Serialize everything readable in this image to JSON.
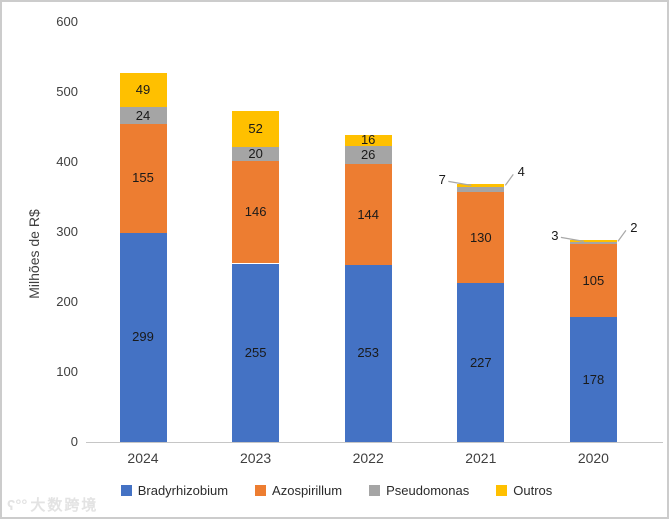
{
  "watermark": {
    "logo_glyph": "ʕ°°",
    "text": "大数跨境"
  },
  "chart_data": {
    "type": "bar",
    "stacked": true,
    "title": "",
    "xlabel": "",
    "ylabel": "Milhões de R$",
    "categories": [
      "2024",
      "2023",
      "2022",
      "2021",
      "2020"
    ],
    "series": [
      {
        "name": "Bradyrhizobium",
        "color": "#4472C4",
        "values": [
          299,
          255,
          253,
          227,
          178
        ]
      },
      {
        "name": "Azospirillum",
        "color": "#ED7D31",
        "values": [
          155,
          146,
          144,
          130,
          105
        ]
      },
      {
        "name": "Pseudomonas",
        "color": "#A5A5A5",
        "values": [
          24,
          20,
          26,
          7,
          3
        ]
      },
      {
        "name": "Outros",
        "color": "#FFC000",
        "values": [
          49,
          52,
          16,
          4,
          2
        ]
      }
    ],
    "ylim": [
      0,
      600
    ],
    "yticks": [
      0,
      100,
      200,
      300,
      400,
      500,
      600
    ],
    "gridlines": false,
    "legend_position": "bottom",
    "bar_value_labels": true,
    "callouts": [
      {
        "category": "2021",
        "series": "Pseudomonas",
        "value": 7,
        "side": "left"
      },
      {
        "category": "2021",
        "series": "Outros",
        "value": 4,
        "side": "right"
      },
      {
        "category": "2020",
        "series": "Pseudomonas",
        "value": 3,
        "side": "left"
      },
      {
        "category": "2020",
        "series": "Outros",
        "value": 2,
        "side": "right"
      }
    ],
    "leader_line_color": "#a8a8a8",
    "axis_text_color": "#3f3f3f"
  }
}
